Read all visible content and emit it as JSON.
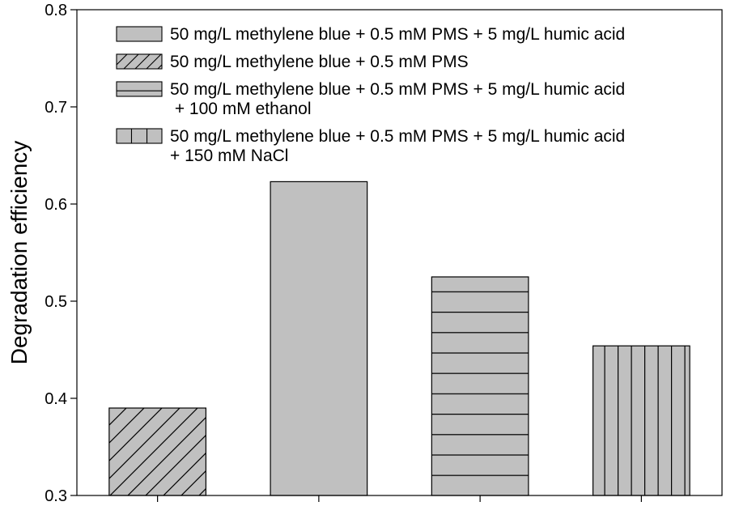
{
  "chart_data": {
    "type": "bar",
    "title": "",
    "xlabel": "",
    "ylabel": "Degradation efficiency",
    "ylim": [
      0.3,
      0.8
    ],
    "yticks": [
      "0.3",
      "0.4",
      "0.5",
      "0.6",
      "0.7",
      "0.8"
    ],
    "grid": false,
    "legend_position": "top",
    "bar_color": "#c0c0c0",
    "edge_color": "#000000",
    "bars": [
      {
        "value": 0.39,
        "pattern": "diagonal"
      },
      {
        "value": 0.623,
        "pattern": "solid"
      },
      {
        "value": 0.525,
        "pattern": "horizontal"
      },
      {
        "value": 0.454,
        "pattern": "vertical"
      }
    ],
    "legend": [
      {
        "pattern": "solid",
        "lines": [
          "50 mg/L methylene blue + 0.5 mM PMS + 5 mg/L humic acid"
        ]
      },
      {
        "pattern": "diagonal",
        "lines": [
          "50 mg/L methylene blue + 0.5 mM PMS"
        ]
      },
      {
        "pattern": "horizontal",
        "lines": [
          "50 mg/L methylene blue + 0.5 mM PMS + 5 mg/L humic acid",
          " + 100 mM ethanol"
        ]
      },
      {
        "pattern": "vertical",
        "lines": [
          "50 mg/L methylene blue + 0.5 mM PMS + 5 mg/L humic acid",
          "+ 150 mM NaCl"
        ]
      }
    ]
  }
}
